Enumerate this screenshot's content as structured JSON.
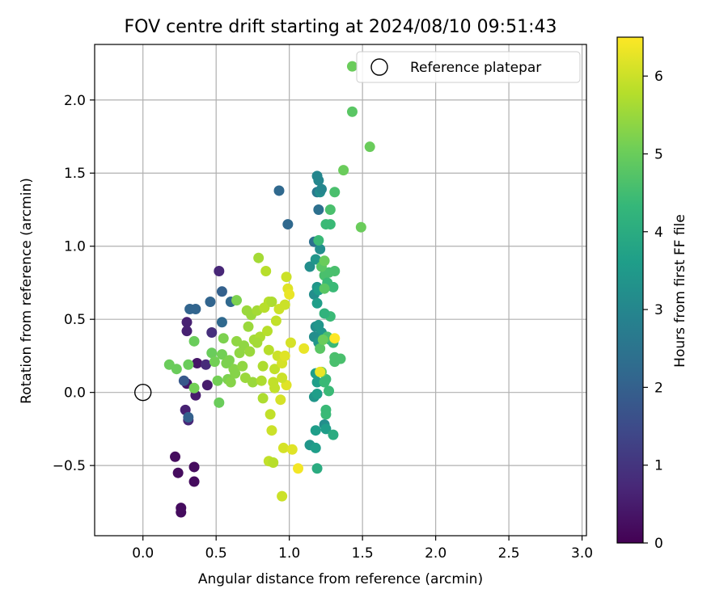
{
  "chart_data": {
    "type": "scatter",
    "title": "FOV centre drift starting at 2024/08/10 09:51:43",
    "xlabel": "Angular distance from reference (arcmin)",
    "ylabel": "Rotation from reference (arcmin)",
    "xlim": [
      -0.33,
      3.03
    ],
    "ylim": [
      -0.98,
      2.38
    ],
    "xticks": [
      0.0,
      0.5,
      1.0,
      1.5,
      2.0,
      2.5,
      3.0
    ],
    "xtick_labels": [
      "0.0",
      "0.5",
      "1.0",
      "1.5",
      "2.0",
      "2.5",
      "3.0"
    ],
    "yticks": [
      -0.5,
      0.0,
      0.5,
      1.0,
      1.5,
      2.0
    ],
    "ytick_labels": [
      "−0.5",
      "0.0",
      "0.5",
      "1.0",
      "1.5",
      "2.0"
    ],
    "grid": true,
    "legend": {
      "placement": "top-right",
      "entries": [
        "Reference platepar"
      ]
    },
    "reference_point": {
      "x": 0.0,
      "y": 0.0
    },
    "colorbar": {
      "label": "Hours from first FF file",
      "range": [
        0,
        6.5
      ],
      "ticks": [
        0,
        1,
        2,
        3,
        4,
        5,
        6
      ],
      "tick_labels": [
        "0",
        "1",
        "2",
        "3",
        "4",
        "5",
        "6"
      ],
      "colormap": [
        "#440154",
        "#482878",
        "#3e4989",
        "#31688e",
        "#26828e",
        "#1f9e89",
        "#35b779",
        "#6ece58",
        "#b5de2b",
        "#fde725"
      ]
    },
    "points": [
      {
        "x": 0.22,
        "y": -0.44,
        "t": 0.2
      },
      {
        "x": 0.24,
        "y": -0.55,
        "t": 0.2
      },
      {
        "x": 0.26,
        "y": -0.79,
        "t": 0.2
      },
      {
        "x": 0.26,
        "y": -0.82,
        "t": 0.2
      },
      {
        "x": 0.35,
        "y": -0.51,
        "t": 0.2
      },
      {
        "x": 0.35,
        "y": -0.61,
        "t": 0.2
      },
      {
        "x": 0.29,
        "y": -0.12,
        "t": 0.6
      },
      {
        "x": 0.31,
        "y": -0.19,
        "t": 0.7
      },
      {
        "x": 0.3,
        "y": 0.06,
        "t": 0.4
      },
      {
        "x": 0.36,
        "y": -0.02,
        "t": 0.5
      },
      {
        "x": 0.37,
        "y": 0.2,
        "t": 0.4
      },
      {
        "x": 0.44,
        "y": 0.05,
        "t": 0.5
      },
      {
        "x": 0.3,
        "y": 0.48,
        "t": 0.6
      },
      {
        "x": 0.3,
        "y": 0.42,
        "t": 0.6
      },
      {
        "x": 0.47,
        "y": 0.41,
        "t": 0.9
      },
      {
        "x": 0.52,
        "y": 0.83,
        "t": 0.7
      },
      {
        "x": 0.43,
        "y": 0.19,
        "t": 0.8
      },
      {
        "x": 0.28,
        "y": 0.08,
        "t": 1.8
      },
      {
        "x": 0.31,
        "y": -0.17,
        "t": 2.0
      },
      {
        "x": 0.32,
        "y": 0.57,
        "t": 2.1
      },
      {
        "x": 0.36,
        "y": 0.57,
        "t": 2.1
      },
      {
        "x": 0.46,
        "y": 0.62,
        "t": 2.1
      },
      {
        "x": 0.54,
        "y": 0.69,
        "t": 2.0
      },
      {
        "x": 0.54,
        "y": 0.48,
        "t": 2.2
      },
      {
        "x": 0.6,
        "y": 0.62,
        "t": 2.2
      },
      {
        "x": 0.93,
        "y": 1.38,
        "t": 2.2
      },
      {
        "x": 0.99,
        "y": 1.15,
        "t": 2.2
      },
      {
        "x": 1.17,
        "y": 1.03,
        "t": 2.4
      },
      {
        "x": 1.2,
        "y": 1.25,
        "t": 2.4
      },
      {
        "x": 1.19,
        "y": 1.37,
        "t": 2.6
      },
      {
        "x": 1.19,
        "y": 1.48,
        "t": 3.0
      },
      {
        "x": 1.2,
        "y": 1.45,
        "t": 3.0
      },
      {
        "x": 1.21,
        "y": 1.37,
        "t": 3.2
      },
      {
        "x": 1.22,
        "y": 1.39,
        "t": 3.0
      },
      {
        "x": 1.14,
        "y": 0.86,
        "t": 3.2
      },
      {
        "x": 1.18,
        "y": 0.91,
        "t": 3.4
      },
      {
        "x": 1.21,
        "y": 0.98,
        "t": 3.2
      },
      {
        "x": 1.19,
        "y": 0.72,
        "t": 3.4
      },
      {
        "x": 1.17,
        "y": 0.67,
        "t": 3.2
      },
      {
        "x": 1.2,
        "y": 0.7,
        "t": 3.6
      },
      {
        "x": 1.19,
        "y": 0.61,
        "t": 3.6
      },
      {
        "x": 1.18,
        "y": 0.45,
        "t": 3.2
      },
      {
        "x": 1.2,
        "y": 0.46,
        "t": 3.4
      },
      {
        "x": 1.22,
        "y": 0.41,
        "t": 3.4
      },
      {
        "x": 1.17,
        "y": 0.38,
        "t": 3.2
      },
      {
        "x": 1.2,
        "y": 0.34,
        "t": 3.4
      },
      {
        "x": 1.18,
        "y": 0.13,
        "t": 3.6
      },
      {
        "x": 1.19,
        "y": 0.07,
        "t": 3.6
      },
      {
        "x": 1.17,
        "y": -0.03,
        "t": 3.4
      },
      {
        "x": 1.19,
        "y": -0.01,
        "t": 3.6
      },
      {
        "x": 1.18,
        "y": -0.26,
        "t": 3.6
      },
      {
        "x": 1.24,
        "y": -0.22,
        "t": 3.2
      },
      {
        "x": 1.25,
        "y": -0.25,
        "t": 3.6
      },
      {
        "x": 1.14,
        "y": -0.36,
        "t": 3.4
      },
      {
        "x": 1.18,
        "y": -0.38,
        "t": 3.6
      },
      {
        "x": 1.19,
        "y": -0.52,
        "t": 4.0
      },
      {
        "x": 1.3,
        "y": -0.29,
        "t": 4.0
      },
      {
        "x": 1.25,
        "y": -0.12,
        "t": 4.4
      },
      {
        "x": 1.25,
        "y": -0.15,
        "t": 4.4
      },
      {
        "x": 1.27,
        "y": 0.01,
        "t": 4.4
      },
      {
        "x": 1.24,
        "y": 0.07,
        "t": 4.4
      },
      {
        "x": 1.25,
        "y": 0.09,
        "t": 4.4
      },
      {
        "x": 1.28,
        "y": 0.36,
        "t": 4.2
      },
      {
        "x": 1.3,
        "y": 0.34,
        "t": 4.4
      },
      {
        "x": 1.26,
        "y": 0.38,
        "t": 4.6
      },
      {
        "x": 1.28,
        "y": 0.52,
        "t": 4.4
      },
      {
        "x": 1.24,
        "y": 0.54,
        "t": 4.2
      },
      {
        "x": 1.24,
        "y": 0.8,
        "t": 4.6
      },
      {
        "x": 1.26,
        "y": 0.75,
        "t": 4.4
      },
      {
        "x": 1.27,
        "y": 0.82,
        "t": 4.6
      },
      {
        "x": 1.3,
        "y": 0.72,
        "t": 4.4
      },
      {
        "x": 1.31,
        "y": 0.83,
        "t": 4.6
      },
      {
        "x": 1.2,
        "y": 1.04,
        "t": 4.4
      },
      {
        "x": 1.25,
        "y": 1.15,
        "t": 4.4
      },
      {
        "x": 1.28,
        "y": 1.15,
        "t": 4.4
      },
      {
        "x": 1.28,
        "y": 1.25,
        "t": 4.6
      },
      {
        "x": 1.31,
        "y": 1.37,
        "t": 4.6
      },
      {
        "x": 1.31,
        "y": 0.21,
        "t": 4.6
      },
      {
        "x": 1.31,
        "y": 0.24,
        "t": 4.6
      },
      {
        "x": 1.35,
        "y": 0.23,
        "t": 4.6
      },
      {
        "x": 1.37,
        "y": 1.52,
        "t": 5.0
      },
      {
        "x": 1.43,
        "y": 2.23,
        "t": 5.0
      },
      {
        "x": 1.43,
        "y": 1.92,
        "t": 4.8
      },
      {
        "x": 1.55,
        "y": 1.68,
        "t": 5.0
      },
      {
        "x": 1.49,
        "y": 1.13,
        "t": 5.0
      },
      {
        "x": 1.22,
        "y": 0.86,
        "t": 4.8
      },
      {
        "x": 1.24,
        "y": 0.71,
        "t": 4.8
      },
      {
        "x": 1.21,
        "y": 0.3,
        "t": 4.8
      },
      {
        "x": 1.23,
        "y": 0.36,
        "t": 5.0
      },
      {
        "x": 1.22,
        "y": 0.14,
        "t": 5.0
      },
      {
        "x": 1.24,
        "y": 0.9,
        "t": 5.0
      },
      {
        "x": 0.18,
        "y": 0.19,
        "t": 5.0
      },
      {
        "x": 0.23,
        "y": 0.16,
        "t": 5.0
      },
      {
        "x": 0.31,
        "y": 0.19,
        "t": 5.0
      },
      {
        "x": 0.35,
        "y": 0.35,
        "t": 5.0
      },
      {
        "x": 0.35,
        "y": 0.03,
        "t": 5.1
      },
      {
        "x": 0.47,
        "y": 0.27,
        "t": 5.0
      },
      {
        "x": 0.49,
        "y": 0.21,
        "t": 5.1
      },
      {
        "x": 0.51,
        "y": 0.08,
        "t": 5.1
      },
      {
        "x": 0.52,
        "y": -0.07,
        "t": 5.0
      },
      {
        "x": 0.54,
        "y": 0.26,
        "t": 5.1
      },
      {
        "x": 0.55,
        "y": 0.37,
        "t": 5.2
      },
      {
        "x": 0.58,
        "y": 0.09,
        "t": 5.2
      },
      {
        "x": 0.59,
        "y": 0.22,
        "t": 5.2
      },
      {
        "x": 0.6,
        "y": 0.07,
        "t": 5.3
      },
      {
        "x": 0.62,
        "y": 0.16,
        "t": 5.3
      },
      {
        "x": 0.64,
        "y": 0.35,
        "t": 5.4
      },
      {
        "x": 0.64,
        "y": 0.63,
        "t": 5.2
      },
      {
        "x": 0.66,
        "y": 0.27,
        "t": 5.4
      },
      {
        "x": 0.69,
        "y": 0.32,
        "t": 5.4
      },
      {
        "x": 0.7,
        "y": 0.1,
        "t": 5.5
      },
      {
        "x": 0.71,
        "y": 0.56,
        "t": 5.5
      },
      {
        "x": 0.72,
        "y": 0.45,
        "t": 5.5
      },
      {
        "x": 0.74,
        "y": 0.53,
        "t": 5.5
      },
      {
        "x": 0.75,
        "y": 0.07,
        "t": 5.5
      },
      {
        "x": 0.76,
        "y": 0.36,
        "t": 5.6
      },
      {
        "x": 0.78,
        "y": 0.56,
        "t": 5.6
      },
      {
        "x": 0.79,
        "y": 0.92,
        "t": 5.6
      },
      {
        "x": 0.8,
        "y": 0.38,
        "t": 5.7
      },
      {
        "x": 0.81,
        "y": 0.08,
        "t": 5.7
      },
      {
        "x": 0.82,
        "y": 0.18,
        "t": 5.7
      },
      {
        "x": 0.82,
        "y": -0.04,
        "t": 5.7
      },
      {
        "x": 0.83,
        "y": 0.58,
        "t": 5.8
      },
      {
        "x": 0.84,
        "y": 0.83,
        "t": 5.8
      },
      {
        "x": 0.85,
        "y": 0.42,
        "t": 5.8
      },
      {
        "x": 0.86,
        "y": 0.29,
        "t": 5.8
      },
      {
        "x": 0.86,
        "y": 0.62,
        "t": 5.8
      },
      {
        "x": 0.87,
        "y": -0.15,
        "t": 5.9
      },
      {
        "x": 0.88,
        "y": -0.26,
        "t": 6.0
      },
      {
        "x": 0.89,
        "y": 0.07,
        "t": 5.9
      },
      {
        "x": 0.9,
        "y": 0.16,
        "t": 5.9
      },
      {
        "x": 0.91,
        "y": 0.49,
        "t": 5.9
      },
      {
        "x": 0.92,
        "y": 0.25,
        "t": 6.0
      },
      {
        "x": 0.93,
        "y": 0.57,
        "t": 6.0
      },
      {
        "x": 0.94,
        "y": -0.05,
        "t": 6.1
      },
      {
        "x": 0.95,
        "y": 0.2,
        "t": 6.1
      },
      {
        "x": 0.96,
        "y": -0.38,
        "t": 6.1
      },
      {
        "x": 0.97,
        "y": 0.6,
        "t": 6.0
      },
      {
        "x": 0.98,
        "y": 0.79,
        "t": 6.0
      },
      {
        "x": 0.98,
        "y": 0.05,
        "t": 6.2
      },
      {
        "x": 0.99,
        "y": 0.71,
        "t": 6.2
      },
      {
        "x": 1.0,
        "y": 0.67,
        "t": 6.3
      },
      {
        "x": 1.01,
        "y": 0.34,
        "t": 6.1
      },
      {
        "x": 1.02,
        "y": -0.39,
        "t": 6.2
      },
      {
        "x": 1.06,
        "y": -0.52,
        "t": 6.4
      },
      {
        "x": 1.1,
        "y": 0.3,
        "t": 6.3
      },
      {
        "x": 1.21,
        "y": 0.14,
        "t": 6.3
      },
      {
        "x": 1.31,
        "y": 0.37,
        "t": 6.5
      },
      {
        "x": 0.95,
        "y": -0.71,
        "t": 6.0
      },
      {
        "x": 0.86,
        "y": -0.47,
        "t": 5.9
      },
      {
        "x": 0.89,
        "y": -0.48,
        "t": 5.8
      },
      {
        "x": 0.97,
        "y": 0.25,
        "t": 6.2
      },
      {
        "x": 0.9,
        "y": 0.03,
        "t": 5.9
      },
      {
        "x": 0.88,
        "y": 0.62,
        "t": 5.7
      },
      {
        "x": 0.78,
        "y": 0.34,
        "t": 5.6
      },
      {
        "x": 0.73,
        "y": 0.28,
        "t": 5.5
      },
      {
        "x": 0.68,
        "y": 0.18,
        "t": 5.4
      },
      {
        "x": 0.63,
        "y": 0.13,
        "t": 5.3
      },
      {
        "x": 0.57,
        "y": 0.2,
        "t": 5.2
      },
      {
        "x": 0.95,
        "y": 0.1,
        "t": 6.0
      }
    ]
  }
}
